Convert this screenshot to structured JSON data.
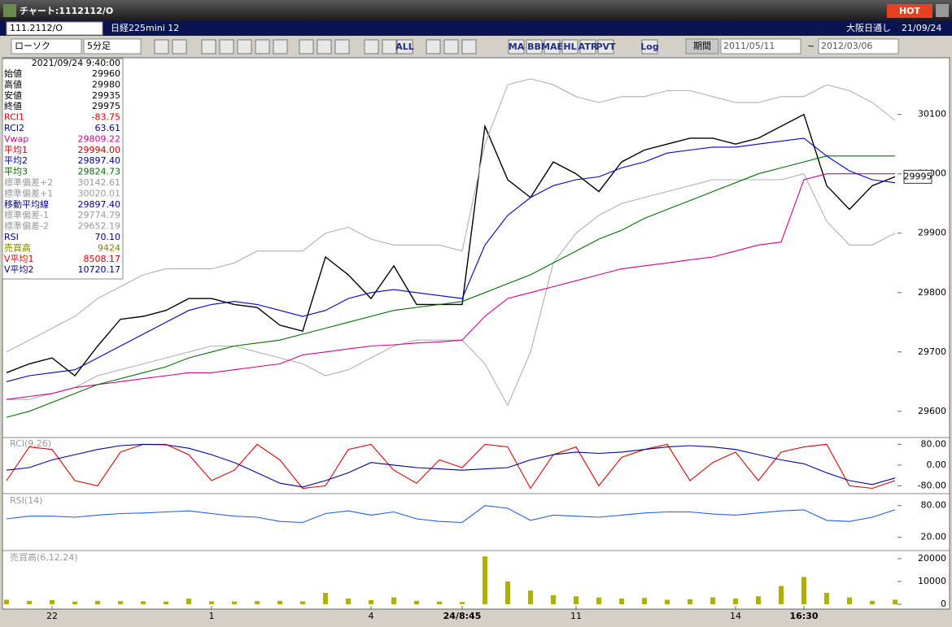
{
  "window": {
    "title": "チャート:1112112/O",
    "hot": "HOT"
  },
  "header": {
    "symbol": "111.2112/O",
    "name": "日経225mini 12",
    "session": "大阪日通し",
    "date": "21/09/24"
  },
  "toolbar": {
    "chart_style": "ローソク",
    "interval": "5分足",
    "buttons": [
      "ALL",
      "MA",
      "BB",
      "MAE",
      "HL",
      "ATR",
      "PVT",
      "Log"
    ],
    "period": "期間",
    "from": "2011/05/11",
    "to": "2012/03/06"
  },
  "info_panel": {
    "timestamp": "2021/09/24 9:40:00",
    "rows": [
      {
        "label": "始値",
        "value": "29960",
        "color": "#000"
      },
      {
        "label": "高値",
        "value": "29980",
        "color": "#000"
      },
      {
        "label": "安値",
        "value": "29935",
        "color": "#000"
      },
      {
        "label": "終値",
        "value": "29975",
        "color": "#000"
      },
      {
        "label": "RCI1",
        "value": "-83.75",
        "color": "#d00000"
      },
      {
        "label": "RCI2",
        "value": "63.61",
        "color": "#000090"
      },
      {
        "label": "Vwap",
        "value": "29809.22",
        "color": "#d0008a"
      },
      {
        "label": "平均1",
        "value": "29994.00",
        "color": "#d00000"
      },
      {
        "label": "平均2",
        "value": "29897.40",
        "color": "#000090"
      },
      {
        "label": "平均3",
        "value": "29824.73",
        "color": "#007000"
      },
      {
        "label": "標準偏差+2",
        "value": "30142.61",
        "color": "#999"
      },
      {
        "label": "標準偏差+1",
        "value": "30020.01",
        "color": "#999"
      },
      {
        "label": "移動平均線",
        "value": "29897.40",
        "color": "#000090"
      },
      {
        "label": "標準偏差-1",
        "value": "29774.79",
        "color": "#999"
      },
      {
        "label": "標準偏差-2",
        "value": "29652.19",
        "color": "#999"
      },
      {
        "label": "RSI",
        "value": "70.10",
        "color": "#000090"
      },
      {
        "label": "売買高",
        "value": "9424",
        "color": "#808000"
      },
      {
        "label": "V平均1",
        "value": "8508.17",
        "color": "#d00000"
      },
      {
        "label": "V平均2",
        "value": "10720.17",
        "color": "#000090"
      }
    ]
  },
  "chart_data": [
    {
      "type": "line",
      "price_label": 29995,
      "categories": [
        null,
        null,
        "22",
        null,
        null,
        null,
        null,
        null,
        null,
        "1",
        null,
        null,
        null,
        null,
        null,
        null,
        "4",
        null,
        null,
        null,
        "24/8:45",
        null,
        null,
        null,
        null,
        "11",
        null,
        null,
        null,
        null,
        null,
        null,
        "14",
        null,
        null,
        "16:30",
        null,
        null,
        null,
        null
      ],
      "ylim": [
        29560,
        30190
      ],
      "yticks": [
        29600,
        29700,
        29800,
        29900,
        30000,
        30100
      ],
      "series": [
        {
          "name": "終値",
          "color": "#000000",
          "values": [
            29665,
            29680,
            29690,
            29660,
            29710,
            29755,
            29760,
            29770,
            29790,
            29790,
            29780,
            29775,
            29745,
            29735,
            29860,
            29830,
            29790,
            29845,
            29780,
            29780,
            29780,
            30080,
            29990,
            29960,
            30020,
            30000,
            29970,
            30020,
            30040,
            30050,
            30060,
            30060,
            30050,
            30060,
            30080,
            30100,
            29980,
            29940,
            29980,
            29995
          ]
        },
        {
          "name": "標準偏差+2",
          "color": "#b0b0b0",
          "values": [
            29700,
            29720,
            29740,
            29760,
            29790,
            29810,
            29830,
            29840,
            29840,
            29840,
            29850,
            29870,
            29870,
            29870,
            29900,
            29910,
            29890,
            29880,
            29880,
            29880,
            29870,
            30050,
            30150,
            30160,
            30150,
            30130,
            30120,
            30130,
            30130,
            30140,
            30140,
            30130,
            30120,
            30120,
            30130,
            30130,
            30150,
            30140,
            30120,
            30090
          ]
        },
        {
          "name": "標準偏差-2",
          "color": "#b0b0b0",
          "values": [
            29620,
            29620,
            29630,
            29640,
            29660,
            29670,
            29680,
            29690,
            29700,
            29710,
            29710,
            29700,
            29690,
            29680,
            29660,
            29670,
            29690,
            29710,
            29720,
            29720,
            29720,
            29680,
            29610,
            29700,
            29850,
            29900,
            29930,
            29950,
            29960,
            29970,
            29980,
            29990,
            29990,
            29990,
            29990,
            30000,
            29920,
            29880,
            29880,
            29900
          ]
        },
        {
          "name": "Vwap",
          "color": "#d0008a",
          "values": [
            29620,
            29625,
            29630,
            29640,
            29645,
            29650,
            29655,
            29660,
            29665,
            29665,
            29670,
            29675,
            29680,
            29695,
            29700,
            29705,
            29710,
            29712,
            29715,
            29717,
            29720,
            29760,
            29790,
            29800,
            29810,
            29820,
            29830,
            29840,
            29845,
            29850,
            29855,
            29860,
            29870,
            29880,
            29885,
            29990,
            30000,
            30000,
            30000,
            30000
          ]
        },
        {
          "name": "平均3",
          "color": "#007000",
          "values": [
            29590,
            29600,
            29615,
            29630,
            29645,
            29655,
            29665,
            29675,
            29690,
            29700,
            29710,
            29715,
            29720,
            29730,
            29740,
            29750,
            29760,
            29770,
            29775,
            29780,
            29785,
            29800,
            29815,
            29830,
            29850,
            29870,
            29890,
            29905,
            29925,
            29940,
            29955,
            29970,
            29985,
            30000,
            30010,
            30020,
            30030,
            30030,
            30030,
            30030
          ]
        },
        {
          "name": "平均2",
          "color": "#0000c8",
          "values": [
            29650,
            29660,
            29665,
            29670,
            29690,
            29710,
            29730,
            29750,
            29770,
            29780,
            29785,
            29780,
            29770,
            29760,
            29770,
            29790,
            29800,
            29805,
            29800,
            29795,
            29790,
            29880,
            29930,
            29960,
            29980,
            29990,
            29995,
            30010,
            30020,
            30035,
            30040,
            30045,
            30045,
            30050,
            30055,
            30060,
            30030,
            30005,
            29990,
            29985
          ]
        }
      ]
    },
    {
      "type": "line",
      "title": "RCI(9,26)",
      "ylim": [
        -104,
        100
      ],
      "yticks": [
        {
          "value": 80,
          "label": "80.00"
        },
        {
          "value": 0,
          "label": "0.00"
        },
        {
          "value": -80,
          "label": "-80.00"
        }
      ],
      "series": [
        {
          "name": "RCI1",
          "color": "#e00000",
          "values": [
            -60,
            70,
            60,
            -60,
            -80,
            50,
            80,
            80,
            40,
            -60,
            -20,
            80,
            20,
            -90,
            -80,
            60,
            80,
            -20,
            -70,
            20,
            -10,
            80,
            70,
            -90,
            40,
            70,
            -80,
            30,
            60,
            80,
            -60,
            10,
            50,
            -60,
            50,
            70,
            80,
            -80,
            -90,
            -60
          ]
        },
        {
          "name": "RCI2",
          "color": "#0000a0",
          "values": [
            -20,
            -10,
            20,
            40,
            60,
            75,
            80,
            78,
            65,
            40,
            10,
            -30,
            -70,
            -85,
            -60,
            -30,
            10,
            0,
            -10,
            -15,
            -20,
            -15,
            -10,
            20,
            40,
            50,
            45,
            50,
            60,
            70,
            75,
            70,
            60,
            40,
            20,
            5,
            -30,
            -60,
            -75,
            -50
          ]
        }
      ]
    },
    {
      "type": "line",
      "title": "RSI(14)",
      "ylim": [
        -2,
        98
      ],
      "yticks": [
        {
          "value": 80,
          "label": "80.00"
        },
        {
          "value": 20,
          "label": "20.00"
        }
      ],
      "series": [
        {
          "name": "RSI",
          "color": "#2060e0",
          "values": [
            55,
            60,
            60,
            58,
            62,
            65,
            66,
            68,
            70,
            65,
            60,
            58,
            50,
            48,
            65,
            70,
            62,
            68,
            55,
            50,
            48,
            80,
            75,
            52,
            62,
            60,
            58,
            62,
            66,
            68,
            68,
            64,
            62,
            66,
            70,
            72,
            52,
            50,
            58,
            72
          ]
        }
      ]
    },
    {
      "type": "bar",
      "title": "売買高(6,12,24)",
      "ylim": [
        -700,
        22500
      ],
      "yticks": [
        20000,
        10000,
        0
      ],
      "color": "#b0b000",
      "values": [
        2000,
        1500,
        1800,
        1200,
        1500,
        1400,
        1300,
        1200,
        2500,
        1300,
        1200,
        1400,
        1500,
        1300,
        5000,
        2500,
        1800,
        3000,
        1500,
        1200,
        1000,
        21000,
        10000,
        6000,
        4000,
        3500,
        3000,
        2500,
        2800,
        2000,
        2200,
        3000,
        2500,
        3500,
        8000,
        12000,
        5000,
        3000,
        1500,
        2000
      ]
    }
  ]
}
